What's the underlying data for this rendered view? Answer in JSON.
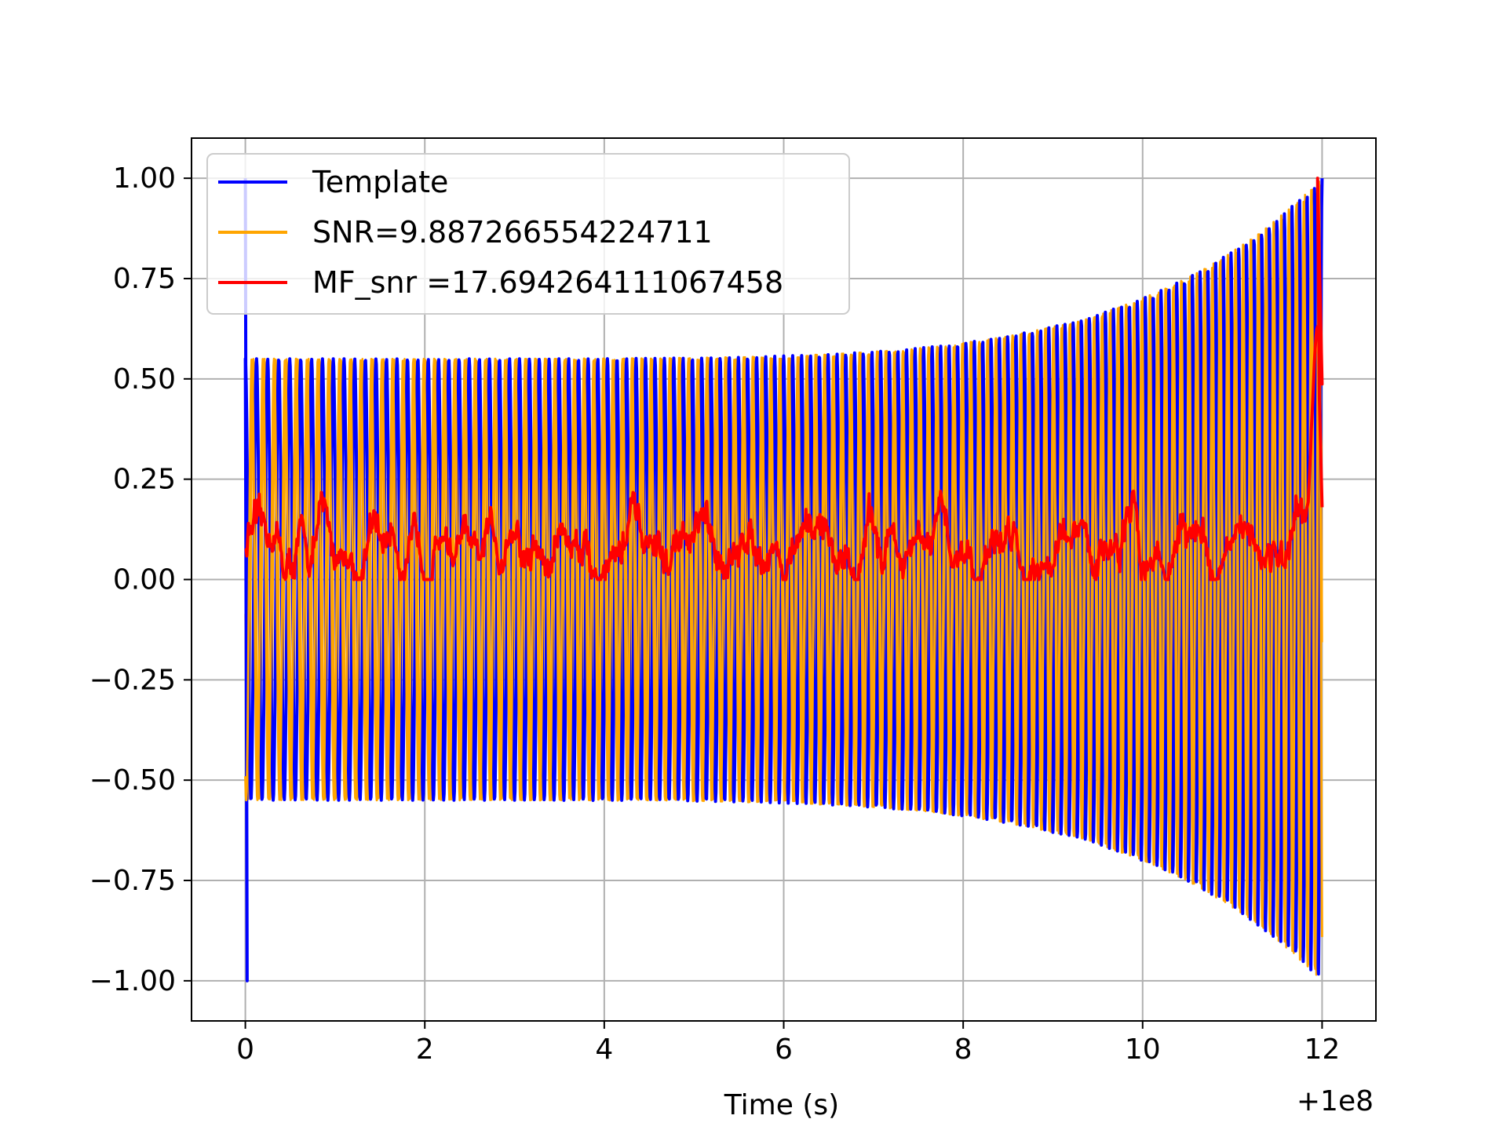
{
  "chart_data": {
    "type": "line",
    "title": "",
    "xlabel": "Time (s)",
    "ylabel": "",
    "x_offset_label": "+1e8",
    "xlim": [
      -0.6,
      12.6
    ],
    "ylim": [
      -1.1,
      1.1
    ],
    "grid": true,
    "legend_position": "upper-left",
    "x_ticks": [
      0,
      2,
      4,
      6,
      8,
      10,
      12
    ],
    "x_tick_labels": [
      "0",
      "2",
      "4",
      "6",
      "8",
      "10",
      "12"
    ],
    "y_ticks": [
      1.0,
      0.75,
      0.5,
      0.25,
      0.0,
      -0.25,
      -0.5,
      -0.75,
      -1.0
    ],
    "y_tick_labels": [
      "1.00",
      "0.75",
      "0.50",
      "0.25",
      "0.00",
      "−0.25",
      "−0.50",
      "−0.75",
      "−1.00"
    ],
    "series": [
      {
        "name": "Template",
        "color": "#0000ff",
        "description_values": {
          "x_start": 0.0,
          "x_end": 12.0,
          "initial_spike": [
            1.0,
            -1.0
          ],
          "envelope_start": 0.55,
          "envelope_end": 1.0,
          "cycles": 120
        }
      },
      {
        "name": "SNR=9.887266554224711",
        "color": "#ffa500",
        "description_values": {
          "x_start": 0.0,
          "x_end": 12.0,
          "envelope_start": 0.55,
          "envelope_end": 1.0,
          "cycles": 120
        }
      },
      {
        "name": "MF_snr =17.694264111067458",
        "color": "#ff0000",
        "description_values": {
          "x_start": 0.0,
          "x_end": 12.0,
          "baseline": 0.08,
          "noise_range": [
            0.0,
            0.22
          ],
          "peak_x": 11.95,
          "peak_y": 1.0,
          "end_y": 0.18
        }
      }
    ]
  }
}
